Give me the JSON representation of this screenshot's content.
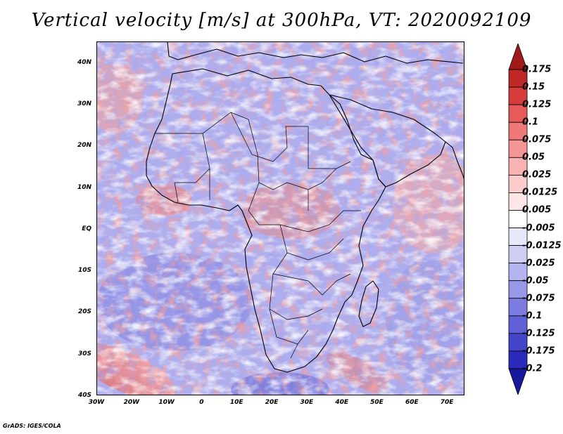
{
  "title": "Vertical velocity [m/s] at 300hPa, VT: 2020092109",
  "credit": "GrADS: IGES/COLA",
  "map": {
    "lon_range": [
      -30,
      75
    ],
    "lat_range": [
      -40,
      45
    ],
    "lat_labels": [
      {
        "lat": 40,
        "text": "40N"
      },
      {
        "lat": 30,
        "text": "30N"
      },
      {
        "lat": 20,
        "text": "20N"
      },
      {
        "lat": 10,
        "text": "10N"
      },
      {
        "lat": 0,
        "text": "EQ"
      },
      {
        "lat": -10,
        "text": "10S"
      },
      {
        "lat": -20,
        "text": "20S"
      },
      {
        "lat": -30,
        "text": "30S"
      },
      {
        "lat": -40,
        "text": "40S"
      }
    ],
    "lon_labels": [
      {
        "lon": -30,
        "text": "30W"
      },
      {
        "lon": -20,
        "text": "20W"
      },
      {
        "lon": -10,
        "text": "10W"
      },
      {
        "lon": 0,
        "text": "0"
      },
      {
        "lon": 10,
        "text": "10E"
      },
      {
        "lon": 20,
        "text": "20E"
      },
      {
        "lon": 30,
        "text": "30E"
      },
      {
        "lon": 40,
        "text": "40E"
      },
      {
        "lon": 50,
        "text": "50E"
      },
      {
        "lon": 60,
        "text": "60E"
      },
      {
        "lon": 70,
        "text": "70E"
      }
    ]
  },
  "colorbar": {
    "labels": [
      "0.175",
      "0.15",
      "0.125",
      "0.1",
      "0.075",
      "0.05",
      "0.025",
      "0.0125",
      "0.005",
      "-0.005",
      "-0.0125",
      "-0.025",
      "-0.05",
      "-0.075",
      "-0.1",
      "-0.125",
      "-0.175",
      "-0.2"
    ],
    "colors": [
      "#a01a1a",
      "#c02828",
      "#d63c3c",
      "#e65a5a",
      "#ef7878",
      "#f49696",
      "#f8b2b2",
      "#fbcccc",
      "#fde6e6",
      "#ffffff",
      "#e8e8fb",
      "#cfcff6",
      "#b4b4f0",
      "#9898e8",
      "#7c7ce0",
      "#6060d6",
      "#4444ca",
      "#2a2aba",
      "#18189c"
    ]
  }
}
